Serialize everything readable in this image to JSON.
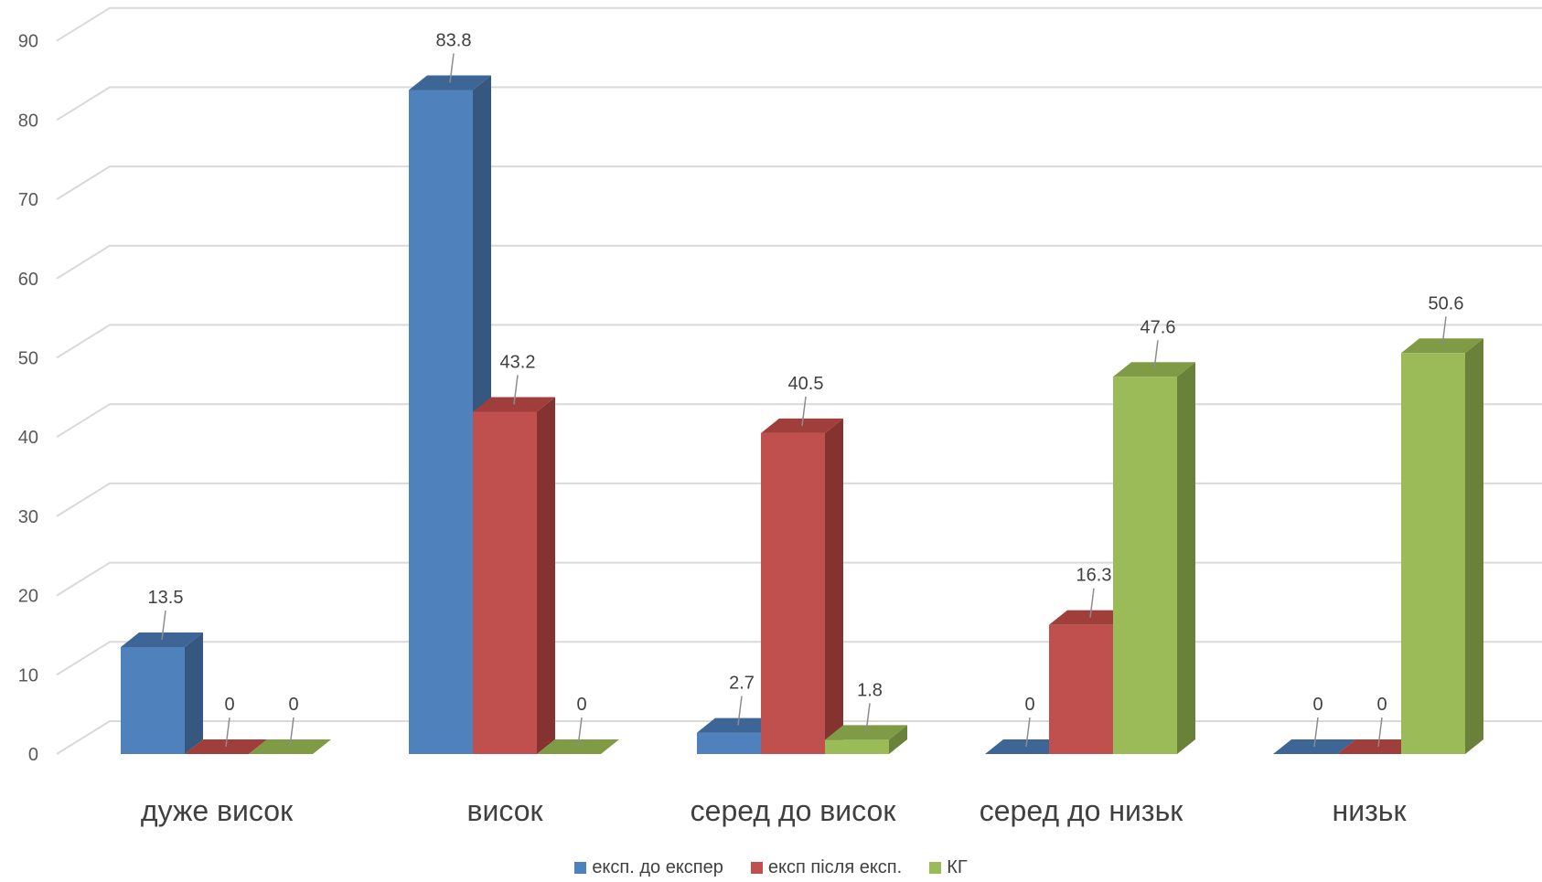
{
  "chart_data": {
    "type": "bar",
    "title": "",
    "xlabel": "",
    "ylabel": "",
    "ylim": [
      0,
      90
    ],
    "yticks": [
      "0",
      "10",
      "20",
      "30",
      "40",
      "50",
      "60",
      "70",
      "80",
      "90"
    ],
    "categories": [
      "дуже висок",
      "висок",
      "серед до висок",
      "серед до низьк",
      "низьк"
    ],
    "series": [
      {
        "name": "експ. до експер",
        "values": [
          13.5,
          83.8,
          2.7,
          0,
          0
        ],
        "labels": [
          "13.5",
          "83.8",
          "2.7",
          "0",
          "0"
        ],
        "color": "#4F81BD",
        "side_color": "#36577F",
        "top_color": "#3D6696"
      },
      {
        "name": "експ після експ.",
        "values": [
          0,
          43.2,
          40.5,
          16.3,
          0
        ],
        "labels": [
          "0",
          "43.2",
          "40.5",
          "16.3",
          "0"
        ],
        "color": "#C0504D",
        "side_color": "#843330",
        "top_color": "#A03E3B"
      },
      {
        "name": "КГ",
        "values": [
          0,
          0,
          1.8,
          47.6,
          50.6
        ],
        "labels": [
          "0",
          "0",
          "1.8",
          "47.6",
          "50.6"
        ],
        "color": "#9BBB59",
        "side_color": "#6A8139",
        "top_color": "#7F9B45"
      }
    ],
    "grid": true,
    "legend_position": "bottom"
  }
}
